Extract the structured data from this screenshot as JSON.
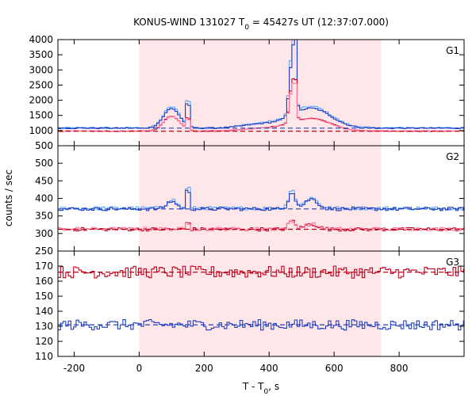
{
  "chart_data": {
    "type": "line",
    "title": "KONUS-WIND 131027 T",
    "title_sub": "0",
    "title_rest": " = 45427s UT (12:37:07.000)",
    "xlabel": "T - T",
    "xlabel_sub": "0",
    "xlabel_rest": ", s",
    "ylabel": "counts / sec",
    "xlim": [
      -250,
      1000
    ],
    "x_ticks": [
      -200,
      0,
      200,
      400,
      600,
      800
    ],
    "highlight": {
      "x_start": 0,
      "x_end": 745,
      "color": "#ffe6e8"
    },
    "colors": {
      "blue": "#1f3fc0",
      "lightblue": "#5aaaff",
      "red": "#c0001a",
      "pink": "#ff7aa0"
    },
    "panels": [
      {
        "label": "G1",
        "ylim": [
          500,
          4000
        ],
        "y_ticks": [
          1000,
          1500,
          2000,
          2500,
          3000,
          3500,
          4000
        ],
        "y_tick_labels": [
          "1000",
          "1500",
          "2000",
          "2500",
          "3000",
          "3500",
          "4000"
        ],
        "bottom_label": "500",
        "series": [
          {
            "color": "lightblue",
            "base": 1090,
            "noise": 25,
            "bumps": [
              [
                100,
                25,
                700
              ],
              [
                150,
                4,
                1300
              ],
              [
                470,
                8,
                2000
              ],
              [
                480,
                4,
                2400
              ],
              [
                530,
                60,
                700
              ],
              [
                380,
                60,
                150
              ]
            ]
          },
          {
            "color": "blue",
            "base": 1080,
            "noise": 20,
            "bumps": [
              [
                100,
                25,
                650
              ],
              [
                150,
                4,
                1100
              ],
              [
                470,
                8,
                1800
              ],
              [
                480,
                4,
                2200
              ],
              [
                530,
                60,
                650
              ],
              [
                380,
                60,
                130
              ]
            ]
          },
          {
            "color": "red",
            "base": 980,
            "noise": 12,
            "bumps": [
              [
                100,
                25,
                500
              ],
              [
                150,
                4,
                600
              ],
              [
                470,
                8,
                1200
              ],
              [
                480,
                4,
                1100
              ],
              [
                530,
                60,
                420
              ],
              [
                380,
                60,
                100
              ]
            ]
          },
          {
            "color": "pink",
            "base": 985,
            "noise": 12,
            "bumps": [
              [
                100,
                25,
                480
              ],
              [
                150,
                4,
                550
              ],
              [
                470,
                8,
                1100
              ],
              [
                480,
                4,
                1000
              ],
              [
                530,
                60,
                400
              ],
              [
                380,
                60,
                90
              ]
            ]
          }
        ],
        "bg_lines": [
          {
            "color": "blue",
            "value": 1080
          },
          {
            "color": "red",
            "value": 980
          }
        ]
      },
      {
        "label": "G2",
        "ylim": [
          250,
          550
        ],
        "y_ticks": [
          300,
          350,
          400,
          450,
          500
        ],
        "y_tick_labels": [
          "300",
          "350",
          "400",
          "450",
          "500"
        ],
        "bottom_label": "250",
        "series": [
          {
            "color": "lightblue",
            "base": 372,
            "noise": 5,
            "bumps": [
              [
                100,
                15,
                25
              ],
              [
                150,
                3,
                140
              ],
              [
                470,
                10,
                55
              ],
              [
                530,
                20,
                30
              ]
            ]
          },
          {
            "color": "blue",
            "base": 370,
            "noise": 5,
            "bumps": [
              [
                100,
                15,
                22
              ],
              [
                150,
                3,
                120
              ],
              [
                470,
                10,
                50
              ],
              [
                530,
                20,
                28
              ]
            ]
          },
          {
            "color": "red",
            "base": 312,
            "noise": 5,
            "bumps": [
              [
                150,
                3,
                45
              ],
              [
                470,
                10,
                25
              ],
              [
                530,
                20,
                15
              ]
            ]
          },
          {
            "color": "pink",
            "base": 313,
            "noise": 5,
            "bumps": [
              [
                150,
                3,
                40
              ],
              [
                470,
                10,
                22
              ],
              [
                530,
                20,
                14
              ]
            ]
          }
        ],
        "bg_lines": [
          {
            "color": "blue",
            "value": 370
          },
          {
            "color": "red",
            "value": 312
          }
        ]
      },
      {
        "label": "G3",
        "ylim": [
          110,
          180
        ],
        "y_ticks": [
          110,
          120,
          130,
          140,
          150,
          160,
          170
        ],
        "y_tick_labels": [
          "110",
          "120",
          "130",
          "140",
          "150",
          "160",
          "170"
        ],
        "bottom_label": "",
        "series": [
          {
            "color": "red",
            "base": 166,
            "noise": 4,
            "bumps": []
          },
          {
            "color": "blue",
            "base": 131,
            "noise": 3.5,
            "bumps": []
          }
        ],
        "bg_lines": [
          {
            "color": "red",
            "value": 166
          },
          {
            "color": "blue",
            "value": 131
          }
        ]
      }
    ]
  }
}
